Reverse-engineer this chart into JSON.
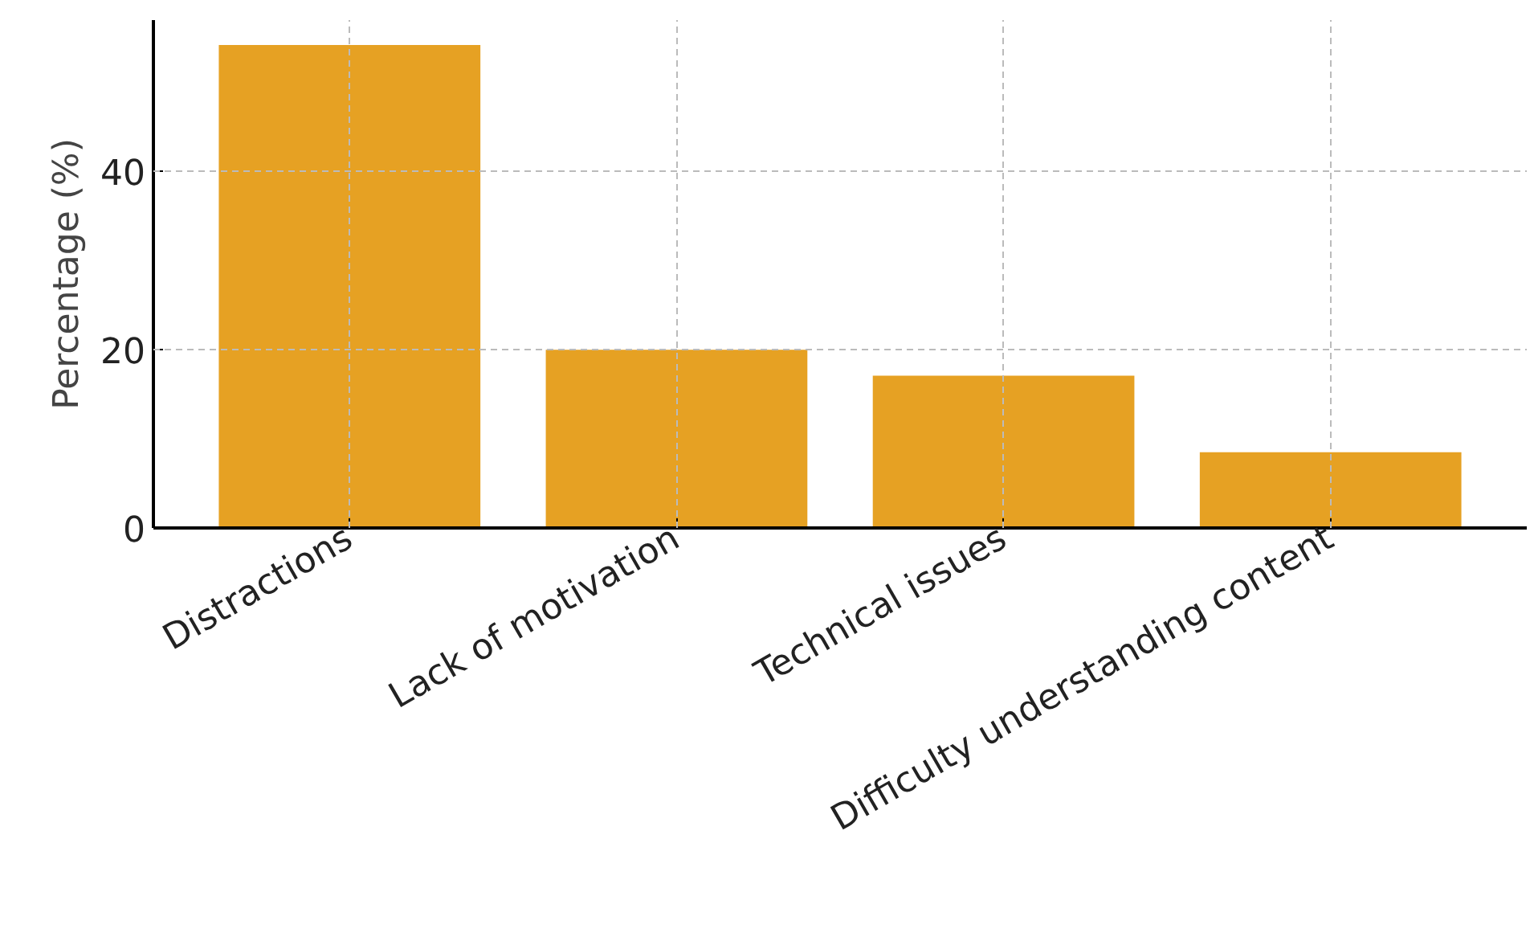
{
  "chart_data": {
    "type": "bar",
    "ylabel": "Percentage (%)",
    "categories": [
      "Distractions",
      "Lack of motivation",
      "Technical issues",
      "Difficulty understanding content"
    ],
    "values": [
      54.2,
      20,
      17.1,
      8.5
    ],
    "color": "#e6a123",
    "ylim": [
      0,
      57
    ],
    "yticks": [
      0,
      20,
      40
    ],
    "grid": true
  }
}
